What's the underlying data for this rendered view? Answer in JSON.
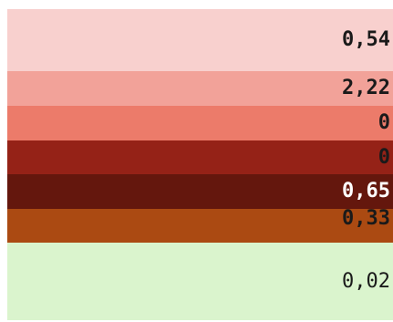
{
  "chart_data": {
    "type": "table",
    "rows": [
      {
        "label": "0,54",
        "value": 0.54,
        "fill": "#f8d0ce",
        "text_color": "#1a1a1a",
        "bold": true
      },
      {
        "label": "2,22",
        "value": 2.22,
        "fill": "#f2a299",
        "text_color": "#1a1a1a",
        "bold": true
      },
      {
        "label": "0",
        "value": 0,
        "fill": "#ec7b6a",
        "text_color": "#1a1a1a",
        "bold": true
      },
      {
        "label": "0",
        "value": 0,
        "fill": "#952217",
        "text_color": "#1a1a1a",
        "bold": true
      },
      {
        "label": "0,65",
        "value": 0.65,
        "fill": "#64170d",
        "text_color": "#ffffff",
        "bold": true
      },
      {
        "label": "0,33",
        "value": 0.33,
        "fill": "#ab4a12",
        "text_color": "#1a1a1a",
        "bold": true
      },
      {
        "label": "0,02",
        "value": 0.02,
        "fill": "#daf4cd",
        "text_color": "#1a1a1a",
        "bold": false
      }
    ]
  }
}
